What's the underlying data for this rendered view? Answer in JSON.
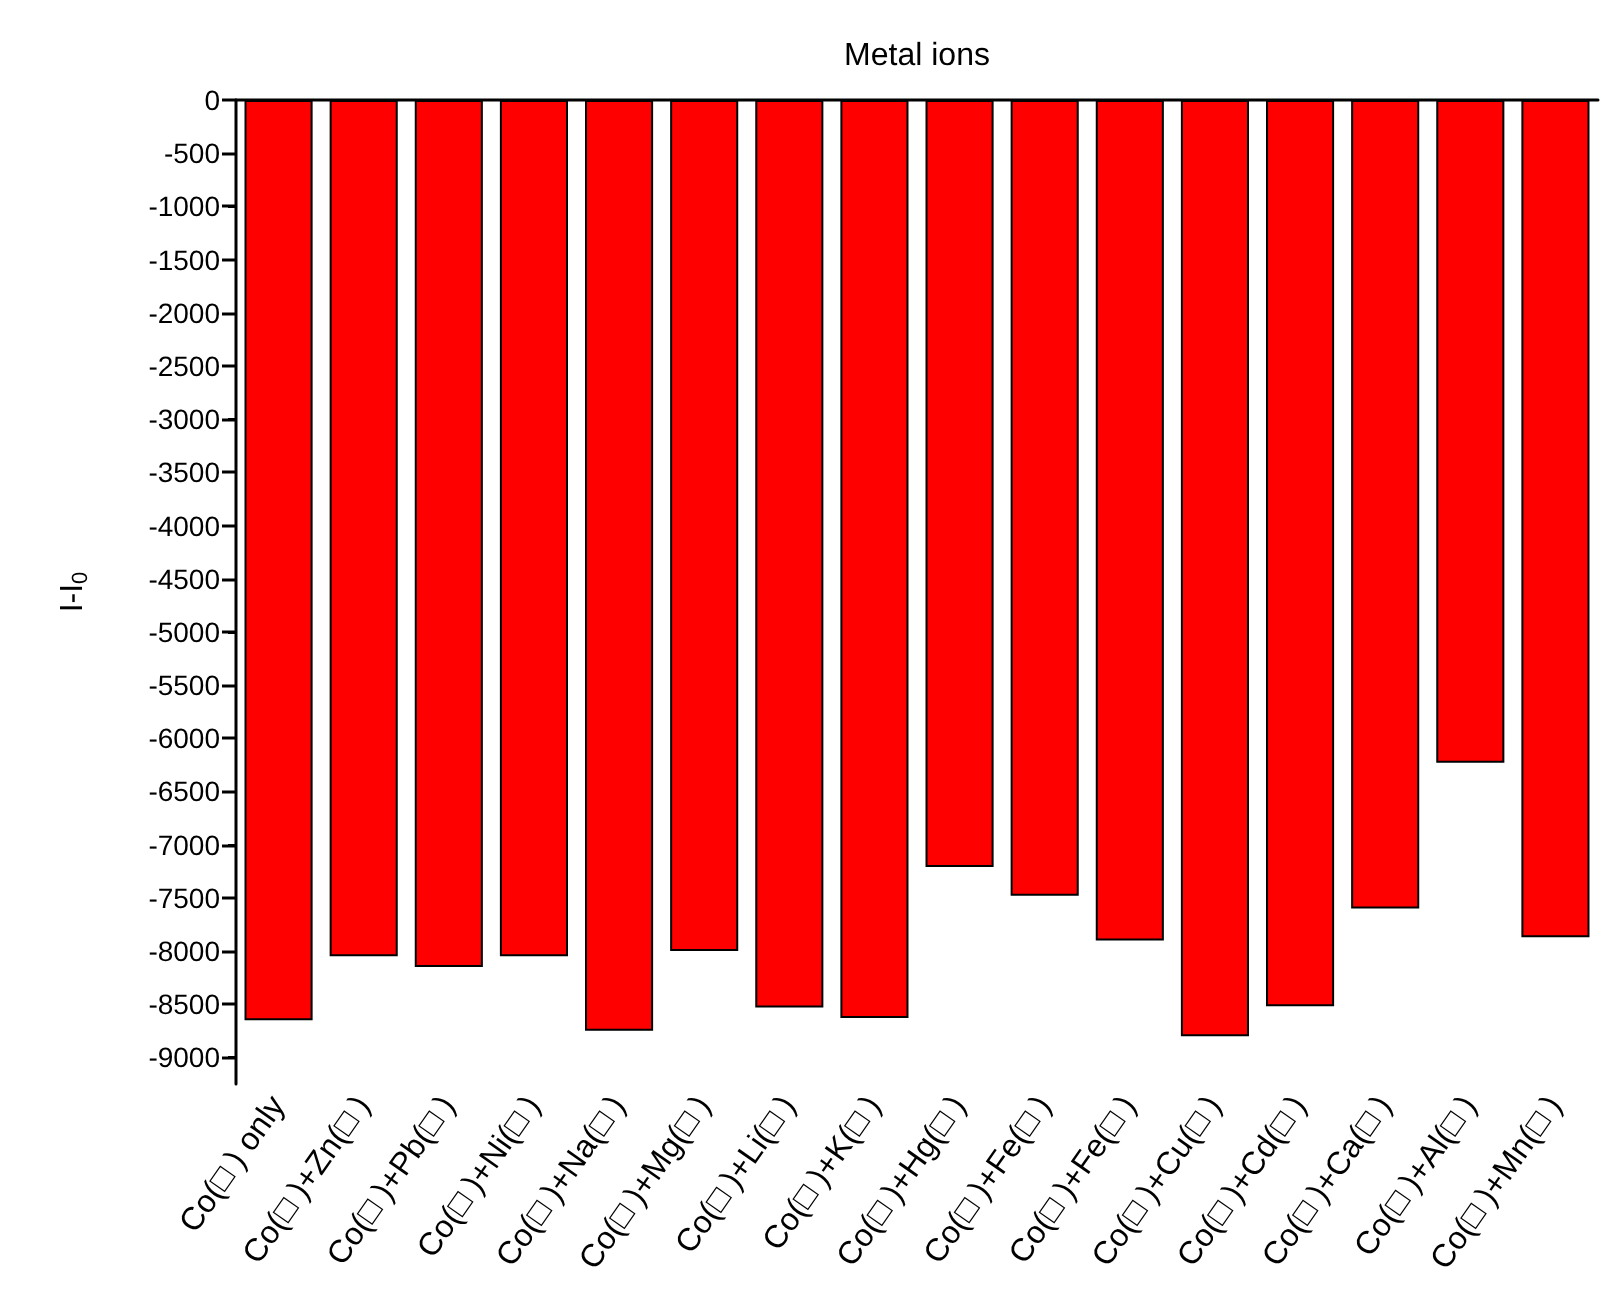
{
  "chart_data": {
    "type": "bar",
    "xlabel": "Metal ions",
    "ylabel": "I-I$_{0}$",
    "categories": [
      "Co(□ ) only",
      "Co(□ )+Zn(□ )",
      "Co(□ )+Pb(□ )",
      "Co(□ )+Ni(□ )",
      "Co(□ )+Na(□ )",
      "Co(□ )+Mg(□ )",
      "Co(□ )+Li(□ )",
      "Co(□ )+K(□ )",
      "Co(□ )+Hg(□ )",
      "Co(□ )+Fe(□ )",
      "Co(□ )+Fe(□ )",
      "Co(□ )+Cu(□ )",
      "Co(□ )+Cd(□ )",
      "Co(□ )+Ca(□ )",
      "Co(□ )+Al(□ )",
      "Co(□ )+Mn(□ )"
    ],
    "values": [
      -8650,
      -8050,
      -8150,
      -8050,
      -8750,
      -8000,
      -8530,
      -8630,
      -7210,
      -7480,
      -7900,
      -8800,
      -8520,
      -7600,
      -6230,
      -7870
    ],
    "color": "#ff0000",
    "ylim": [
      -9250,
      0
    ],
    "yticks": [
      -9000,
      -8500,
      -8000,
      -7500,
      -7000,
      -6500,
      -6000,
      -5500,
      -5000,
      -4500,
      -4000,
      -3500,
      -3000,
      -2500,
      -2000,
      -1500,
      -1000,
      -500,
      0
    ],
    "grid": false
  }
}
